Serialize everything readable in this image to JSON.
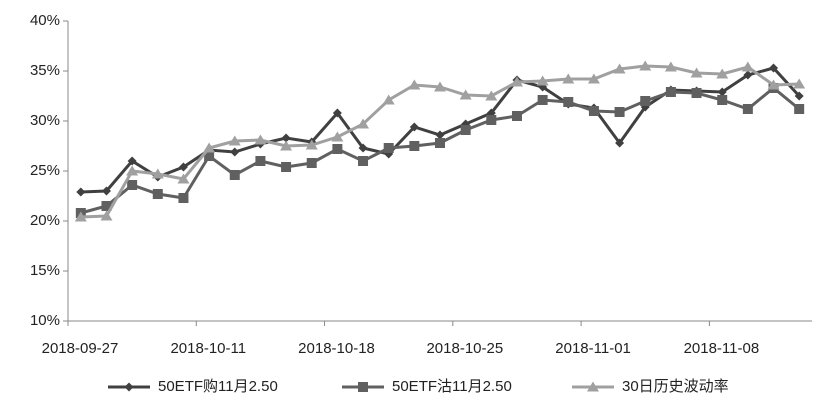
{
  "chart_data": {
    "type": "line",
    "categories": [
      "2018-09-27",
      null,
      null,
      null,
      null,
      "2018-10-11",
      null,
      null,
      null,
      null,
      "2018-10-18",
      null,
      null,
      null,
      null,
      "2018-10-25",
      null,
      null,
      null,
      null,
      "2018-11-01",
      null,
      null,
      null,
      null,
      "2018-11-08",
      null,
      null,
      null
    ],
    "series": [
      {
        "name": "50ETF购11月2.50",
        "color": "#404040",
        "marker": "diamond",
        "values": [
          22.9,
          23.0,
          26.0,
          24.4,
          25.4,
          27.1,
          26.9,
          27.7,
          28.3,
          27.9,
          30.8,
          27.3,
          26.7,
          29.4,
          28.6,
          29.7,
          30.8,
          34.1,
          33.4,
          31.7,
          31.3,
          27.8,
          31.4,
          33.1,
          33.0,
          32.9,
          34.6,
          35.3,
          32.5
        ]
      },
      {
        "name": "50ETF沽11月2.50",
        "color": "#606060",
        "marker": "square",
        "values": [
          20.8,
          21.5,
          23.6,
          22.7,
          22.3,
          26.5,
          24.6,
          26.0,
          25.4,
          25.8,
          27.2,
          26.0,
          27.3,
          27.5,
          27.8,
          29.1,
          30.1,
          30.5,
          32.1,
          31.9,
          31.0,
          30.9,
          32.0,
          32.9,
          32.8,
          32.1,
          31.2,
          33.3,
          31.2
        ]
      },
      {
        "name": "30日历史波动率",
        "color": "#a0a0a0",
        "marker": "triangle",
        "values": [
          20.4,
          20.5,
          25.0,
          24.7,
          24.2,
          27.3,
          28.0,
          28.1,
          27.5,
          27.6,
          28.4,
          29.7,
          32.1,
          33.6,
          33.4,
          32.6,
          32.5,
          33.9,
          34.0,
          34.2,
          34.2,
          35.2,
          35.5,
          35.4,
          34.8,
          34.7,
          35.4,
          33.6,
          33.7
        ]
      }
    ],
    "ylim": [
      10,
      40
    ],
    "yticks": [
      {
        "value": 10,
        "label": "10%"
      },
      {
        "value": 15,
        "label": "15%"
      },
      {
        "value": 20,
        "label": "20%"
      },
      {
        "value": 25,
        "label": "25%"
      },
      {
        "value": 30,
        "label": "30%"
      },
      {
        "value": 35,
        "label": "35%"
      },
      {
        "value": 40,
        "label": "40%"
      }
    ],
    "grid": false,
    "legend": "bottom"
  }
}
